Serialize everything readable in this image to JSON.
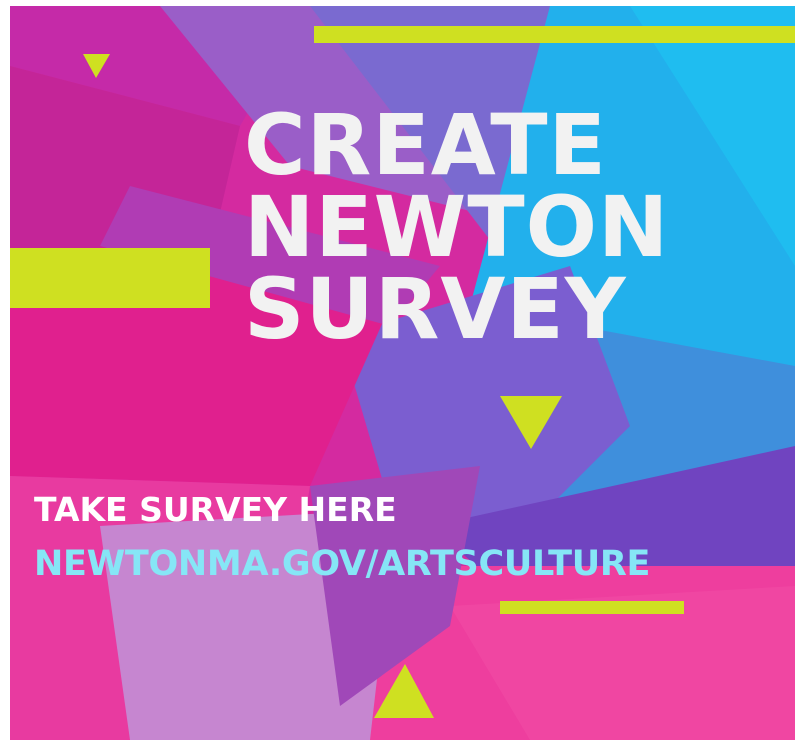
{
  "poster": {
    "headline": {
      "line1": "CREATE",
      "line2": "NEWTON",
      "line3": "SURVEY"
    },
    "cta_text": "TAKE SURVEY HERE",
    "url_text": "NEWTONMA.GOV/ARTSCULTURE"
  },
  "colors": {
    "accent_lime": "#cfe021",
    "magenta": "#d42aa0",
    "hot_pink": "#ee3a9c",
    "purple": "#8a5cc4",
    "sky_blue": "#1fb4ee",
    "headline_text": "#f2f2f2",
    "url_text": "#86e6f6"
  }
}
